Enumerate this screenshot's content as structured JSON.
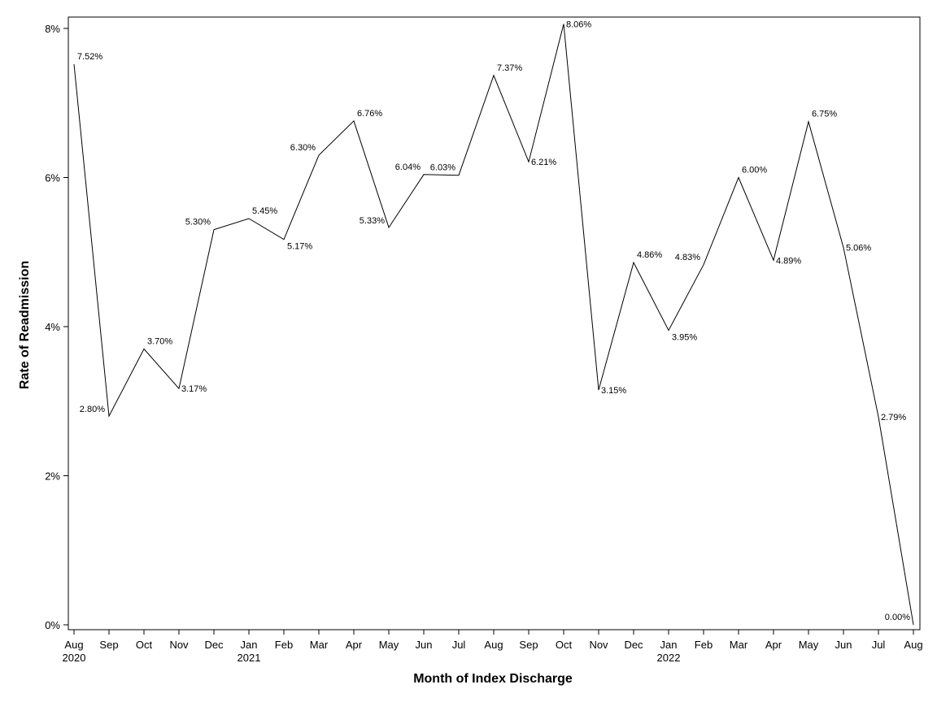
{
  "chart_data": {
    "type": "line",
    "xlabel": "Month of Index Discharge",
    "ylabel": "Rate of Readmission",
    "ylim": [
      0,
      8.15
    ],
    "yticks": [
      0,
      2,
      4,
      6,
      8
    ],
    "ytick_labels": [
      "0%",
      "2%",
      "4%",
      "6%",
      "8%"
    ],
    "x": [
      "Aug 2020",
      "Sep 2020",
      "Oct 2020",
      "Nov 2020",
      "Dec 2020",
      "Jan 2021",
      "Feb 2021",
      "Mar 2021",
      "Apr 2021",
      "May 2021",
      "Jun 2021",
      "Jul 2021",
      "Aug 2021",
      "Sep 2021",
      "Oct 2021",
      "Nov 2021",
      "Dec 2021",
      "Jan 2022",
      "Feb 2022",
      "Mar 2022",
      "Apr 2022",
      "May 2022",
      "Jun 2022",
      "Jul 2022",
      "Aug 2022"
    ],
    "tick_month_labels": [
      "Aug",
      "Sep",
      "Oct",
      "Nov",
      "Dec",
      "Jan",
      "Feb",
      "Mar",
      "Apr",
      "May",
      "Jun",
      "Jul",
      "Aug",
      "Sep",
      "Oct",
      "Nov",
      "Dec",
      "Jan",
      "Feb",
      "Mar",
      "Apr",
      "May",
      "Jun",
      "Jul",
      "Aug"
    ],
    "tick_year_labels": [
      "2020",
      "",
      "",
      "",
      "",
      "2021",
      "",
      "",
      "",
      "",
      "",
      "",
      "",
      "",
      "",
      "",
      "",
      "2022",
      "",
      "",
      "",
      "",
      "",
      "",
      ""
    ],
    "values": [
      7.52,
      2.8,
      3.7,
      3.17,
      5.3,
      5.45,
      5.17,
      6.3,
      6.76,
      5.33,
      6.04,
      6.03,
      7.37,
      6.21,
      8.06,
      3.15,
      4.86,
      3.95,
      4.83,
      6.0,
      4.89,
      6.75,
      5.06,
      2.79,
      0.0
    ],
    "data_labels": [
      "7.52%",
      "2.80%",
      "3.70%",
      "3.17%",
      "5.30%",
      "5.45%",
      "5.17%",
      "6.30%",
      "6.76%",
      "5.33%",
      "6.04%",
      "6.03%",
      "7.37%",
      "6.21%",
      "8.06%",
      "3.15%",
      "4.86%",
      "3.95%",
      "4.83%",
      "6.00%",
      "4.89%",
      "6.75%",
      "5.06%",
      "2.79%",
      "0.00%"
    ],
    "label_positions": [
      "top-right",
      "left",
      "top-right",
      "right",
      "top-left",
      "top-right",
      "bottom-right",
      "top-left",
      "top-right",
      "left",
      "top-left",
      "top-left",
      "top-right",
      "right",
      "right",
      "right",
      "top-right",
      "bottom-right",
      "top-left",
      "top-right",
      "right",
      "top-right",
      "right",
      "right",
      "top-left"
    ],
    "grid": false,
    "legend": "none",
    "line_color": "#000000"
  }
}
